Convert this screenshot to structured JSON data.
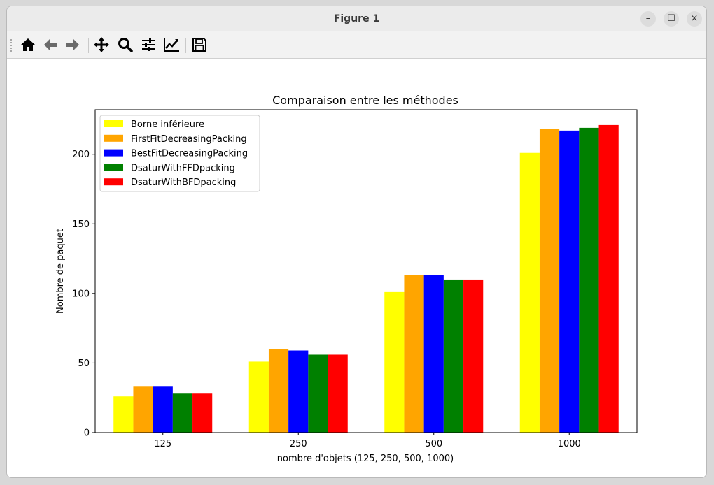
{
  "window": {
    "title": "Figure 1",
    "controls": {
      "minimize": "–",
      "maximize": "☐",
      "close": "×"
    }
  },
  "toolbar": {
    "buttons": [
      {
        "name": "home-button",
        "icon": "home-icon"
      },
      {
        "name": "back-button",
        "icon": "arrow-left-icon"
      },
      {
        "name": "forward-button",
        "icon": "arrow-right-icon"
      },
      {
        "name": "pan-button",
        "icon": "move-icon"
      },
      {
        "name": "zoom-button",
        "icon": "magnifier-icon"
      },
      {
        "name": "configure-subplots-button",
        "icon": "sliders-icon"
      },
      {
        "name": "edit-axis-button",
        "icon": "line-chart-icon"
      },
      {
        "name": "save-button",
        "icon": "floppy-disk-icon"
      }
    ]
  },
  "chart_data": {
    "type": "bar",
    "title": "Comparaison entre les méthodes",
    "xlabel": "nombre d'objets (125, 250, 500, 1000)",
    "ylabel": "Nombre de paquet",
    "categories": [
      "125",
      "250",
      "500",
      "1000"
    ],
    "ylim": [
      0,
      232
    ],
    "yticks": [
      0,
      50,
      100,
      150,
      200
    ],
    "grid": false,
    "legend_position": "top-left",
    "series": [
      {
        "name": "Borne inférieure",
        "color": "#ffff00",
        "values": [
          26,
          51,
          101,
          201
        ]
      },
      {
        "name": "FirstFitDecreasingPacking",
        "color": "#ffa500",
        "values": [
          33,
          60,
          113,
          218
        ]
      },
      {
        "name": "BestFitDecreasingPacking",
        "color": "#0000ff",
        "values": [
          33,
          59,
          113,
          217
        ]
      },
      {
        "name": "DsaturWithFFDpacking",
        "color": "#008000",
        "values": [
          28,
          56,
          110,
          219
        ]
      },
      {
        "name": "DsaturWithBFDpacking",
        "color": "#ff0000",
        "values": [
          28,
          56,
          110,
          221
        ]
      }
    ]
  }
}
